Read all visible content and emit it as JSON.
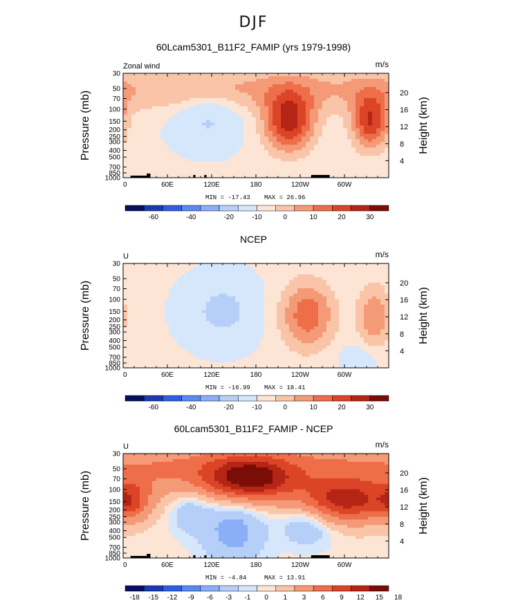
{
  "figure": {
    "title": "DJF"
  },
  "colors": {
    "levels_main": [
      "#08105e",
      "#1a3ab0",
      "#2f5fe0",
      "#5a8af0",
      "#8aaef7",
      "#b5cff9",
      "#d6e6fb",
      "#fde5d5",
      "#f9c4a8",
      "#f59a77",
      "#ee6e4a",
      "#dc4428",
      "#b52515",
      "#7a0d08"
    ],
    "levels_diff": [
      "#08105e",
      "#1a3ab0",
      "#2f5fe0",
      "#5a8af0",
      "#8aaef7",
      "#b5cff9",
      "#d6e6fb",
      "#fde5d5",
      "#f9c4a8",
      "#f59a77",
      "#ee6e4a",
      "#dc4428",
      "#b52515",
      "#7a0d08"
    ]
  },
  "chart_data": [
    {
      "type": "heatmap",
      "title": "60Lcam5301_B11F2_FAMIP (yrs 1979-1998)",
      "left_label": "Zonal wind",
      "units": "m/s",
      "ylabel": "Pressure (mb)",
      "ylabel_right": "Height (km)",
      "x_ticks": [
        "0",
        "60E",
        "120E",
        "180",
        "120W",
        "60W"
      ],
      "x_range": [
        0,
        360
      ],
      "pressure_ticks": [
        "30",
        "50",
        "70",
        "100",
        "150",
        "200",
        "250",
        "300",
        "400",
        "500",
        "700",
        "850",
        "1000"
      ],
      "height_ticks": [
        "20",
        "16",
        "12",
        "8",
        "4"
      ],
      "min_label": "MIN = -17.43",
      "max_label": "MAX = 26.96",
      "colorbar_ticks": [
        "-60",
        "-40",
        "-20",
        "-10",
        "0",
        "10",
        "20",
        "30"
      ],
      "features": [
        {
          "lon": 115,
          "lev": 150,
          "value": -12,
          "sigma_lon": 28,
          "sigma_lev": 0.1
        },
        {
          "lon": 225,
          "lev": 150,
          "value": 27,
          "sigma_lon": 24,
          "sigma_lev": 0.13
        },
        {
          "lon": 335,
          "lev": 150,
          "value": 24,
          "sigma_lon": 18,
          "sigma_lev": 0.12
        },
        {
          "lon": 180,
          "lev": 50,
          "value": 10,
          "sigma_lon": 400,
          "sigma_lev": 0.1
        }
      ]
    },
    {
      "type": "heatmap",
      "title": "NCEP",
      "left_label": "U",
      "units": "m/s",
      "ylabel": "Pressure (mb)",
      "ylabel_right": "Height (km)",
      "x_ticks": [
        "0",
        "60E",
        "120E",
        "180",
        "120W",
        "60W"
      ],
      "x_range": [
        0,
        360
      ],
      "pressure_ticks": [
        "30",
        "50",
        "70",
        "100",
        "150",
        "200",
        "250",
        "300",
        "400",
        "500",
        "700",
        "850",
        "1000"
      ],
      "height_ticks": [
        "20",
        "16",
        "12",
        "8",
        "4"
      ],
      "min_label": "MIN = -16.99",
      "max_label": "MAX = 18.41",
      "colorbar_ticks": [
        "-60",
        "-40",
        "-20",
        "-10",
        "0",
        "10",
        "20",
        "30"
      ],
      "features": [
        {
          "lon": 135,
          "lev": 150,
          "value": -15,
          "sigma_lon": 30,
          "sigma_lev": 0.12
        },
        {
          "lon": 250,
          "lev": 170,
          "value": 18,
          "sigma_lon": 26,
          "sigma_lev": 0.15
        },
        {
          "lon": 340,
          "lev": 180,
          "value": 14,
          "sigma_lon": 16,
          "sigma_lev": 0.14
        },
        {
          "lon": 320,
          "lev": 700,
          "value": -6,
          "sigma_lon": 18,
          "sigma_lev": 0.06
        }
      ]
    },
    {
      "type": "heatmap",
      "title": "60Lcam5301_B11F2_FAMIP - NCEP",
      "left_label": "U",
      "units": "m/s",
      "ylabel": "Pressure (mb)",
      "ylabel_right": "Height (km)",
      "x_ticks": [
        "0",
        "60E",
        "120E",
        "180",
        "120W",
        "60W"
      ],
      "x_range": [
        0,
        360
      ],
      "pressure_ticks": [
        "30",
        "50",
        "70",
        "100",
        "150",
        "200",
        "250",
        "300",
        "400",
        "500",
        "700",
        "850",
        "1000"
      ],
      "height_ticks": [
        "20",
        "16",
        "12",
        "8",
        "4"
      ],
      "min_label": "MIN = -4.84",
      "max_label": "MAX = 13.91",
      "colorbar_ticks": [
        "-18",
        "-15",
        "-12",
        "-9",
        "-6",
        "-3",
        "-1",
        "0",
        "1",
        "3",
        "6",
        "9",
        "12",
        "15",
        "18"
      ],
      "features": [
        {
          "lon": 170,
          "lev": 70,
          "value": 13,
          "sigma_lon": 40,
          "sigma_lev": 0.09
        },
        {
          "lon": 300,
          "lev": 150,
          "value": 12,
          "sigma_lon": 45,
          "sigma_lev": 0.09
        },
        {
          "lon": 180,
          "lev": 50,
          "value": 6,
          "sigma_lon": 400,
          "sigma_lev": 0.12
        },
        {
          "lon": 10,
          "lev": 150,
          "value": 7,
          "sigma_lon": 18,
          "sigma_lev": 0.08
        },
        {
          "lon": 150,
          "lev": 400,
          "value": -4.5,
          "sigma_lon": 30,
          "sigma_lev": 0.15
        },
        {
          "lon": 250,
          "lev": 300,
          "value": -4,
          "sigma_lon": 25,
          "sigma_lev": 0.1
        },
        {
          "lon": 90,
          "lev": 200,
          "value": -3,
          "sigma_lon": 20,
          "sigma_lev": 0.1
        }
      ]
    }
  ]
}
